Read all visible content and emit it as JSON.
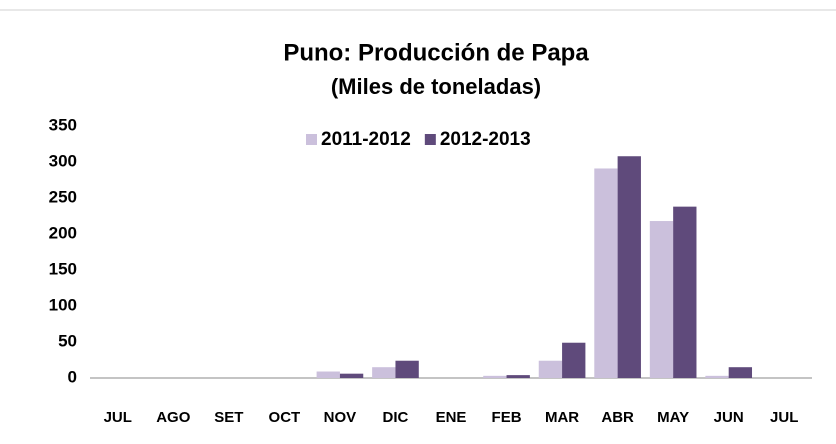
{
  "chart_data": {
    "type": "bar",
    "title": "Puno: Producción de Papa",
    "subtitle": "(Miles de toneladas)",
    "categories": [
      "JUL",
      "AGO",
      "SET",
      "OCT",
      "NOV",
      "DIC",
      "ENE",
      "FEB",
      "MAR",
      "ABR",
      "MAY",
      "JUN",
      "JUL"
    ],
    "series": [
      {
        "name": "2011-2012",
        "color": "#cbc0dc",
        "values": [
          0,
          0,
          0,
          0,
          9,
          15,
          0,
          3,
          24,
          291,
          218,
          3,
          0
        ]
      },
      {
        "name": "2012-2013",
        "color": "#5f4a7b",
        "values": [
          0,
          0,
          0,
          0,
          6,
          24,
          0,
          4,
          49,
          308,
          238,
          15,
          0
        ]
      }
    ],
    "ylim": [
      0,
      350
    ],
    "yticks": [
      0,
      50,
      100,
      150,
      200,
      250,
      300,
      350
    ],
    "grid": false,
    "legend": "top"
  }
}
